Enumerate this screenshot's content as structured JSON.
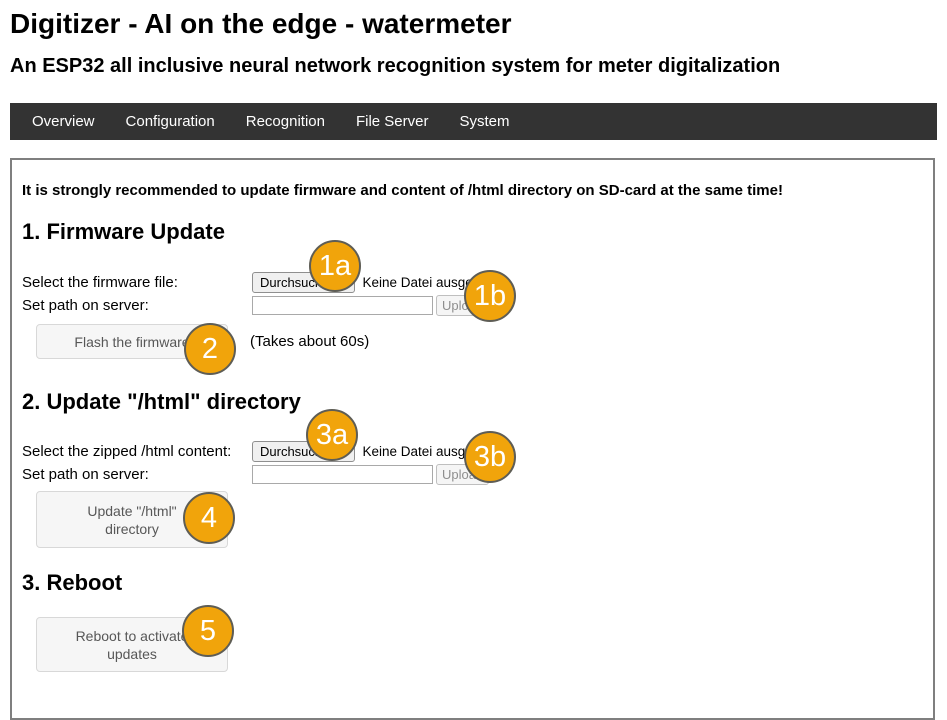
{
  "header": {
    "title": "Digitizer - AI on the edge - watermeter",
    "subtitle": "An ESP32 all inclusive neural network recognition system for meter digitalization"
  },
  "nav": {
    "items": [
      {
        "label": "Overview"
      },
      {
        "label": "Configuration"
      },
      {
        "label": "Recognition"
      },
      {
        "label": "File Server"
      },
      {
        "label": "System"
      }
    ]
  },
  "intro": {
    "warning": "It is strongly recommended to update firmware and content of /html directory on SD-card at the same time!"
  },
  "firmware": {
    "heading": "1. Firmware Update",
    "file_label": "Select the firmware file:",
    "browse_button": "Durchsuchen...",
    "no_file_text": "Keine Datei ausgewäh",
    "path_label": "Set path on server:",
    "path_value": "",
    "upload_button": "Upload",
    "flash_button": "Flash the firmware",
    "duration_note": "(Takes about 60s)"
  },
  "html_update": {
    "heading": "2. Update \"/html\" directory",
    "file_label": "Select the zipped /html content:",
    "browse_button": "Durchsuchen...",
    "no_file_text": "Keine Datei ausgewäh",
    "path_label": "Set path on server:",
    "path_value": "",
    "upload_button": "Upload",
    "update_button": "Update \"/html\" directory"
  },
  "reboot": {
    "heading": "3. Reboot",
    "reboot_button": "Reboot to activate updates"
  },
  "badges": {
    "b1a": "1a",
    "b1b": "1b",
    "b2": "2",
    "b3a": "3a",
    "b3b": "3b",
    "b4": "4",
    "b5": "5"
  },
  "colors": {
    "nav_background": "#333333",
    "badge_fill": "#F1A40B",
    "badge_border": "#5E5D55",
    "content_border": "#7F7F7F"
  }
}
